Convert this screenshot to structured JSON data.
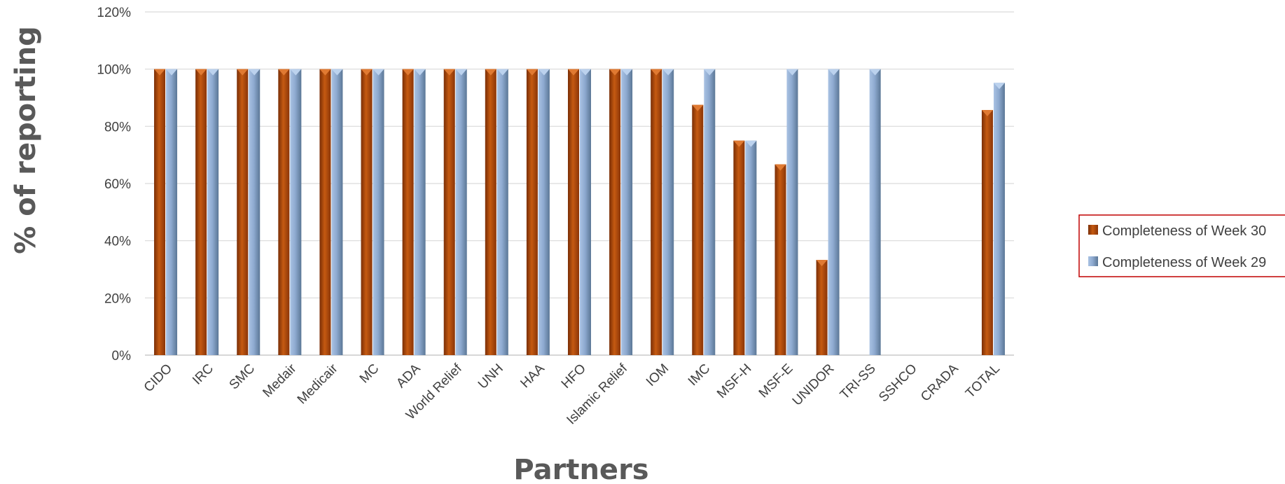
{
  "chart_data": {
    "type": "bar",
    "title": "",
    "xlabel": "Partners",
    "ylabel": "% of reporting",
    "ylim": [
      0,
      120
    ],
    "yticks": [
      "0%",
      "20%",
      "40%",
      "60%",
      "80%",
      "100%",
      "120%"
    ],
    "ytick_values": [
      0,
      20,
      40,
      60,
      80,
      100,
      120
    ],
    "grid": true,
    "legend_position": "right",
    "categories": [
      "CIDO",
      "IRC",
      "SMC",
      "Medair",
      "Medicair",
      "MC",
      "ADA",
      "World Relief",
      "UNH",
      "HAA",
      "HFO",
      "Islamic Relief",
      "IOM",
      "IMC",
      "MSF-H",
      "MSF-E",
      "UNIDOR",
      "TRI-SS",
      "SSHCO",
      "CRADA",
      "TOTAL"
    ],
    "series": [
      {
        "name": "Completeness of Week 30",
        "color": "#c55a11",
        "values": [
          100,
          100,
          100,
          100,
          100,
          100,
          100,
          100,
          100,
          100,
          100,
          100,
          100,
          87.5,
          75,
          66.7,
          33.3,
          0,
          0,
          0,
          85.7
        ]
      },
      {
        "name": "Completeness of Week 29",
        "color": "#8eaad0",
        "values": [
          100,
          100,
          100,
          100,
          100,
          100,
          100,
          100,
          100,
          100,
          100,
          100,
          100,
          100,
          75,
          100,
          100,
          100,
          0,
          0,
          95.2
        ]
      }
    ]
  }
}
